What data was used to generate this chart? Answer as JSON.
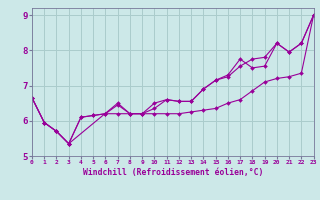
{
  "xlabel": "Windchill (Refroidissement éolien,°C)",
  "bg_color": "#cce8e8",
  "line_color": "#990099",
  "grid_color": "#aacccc",
  "series1": [
    [
      0,
      6.65
    ],
    [
      1,
      5.95
    ],
    [
      2,
      5.7
    ],
    [
      3,
      5.35
    ],
    [
      4,
      6.1
    ],
    [
      5,
      6.15
    ],
    [
      6,
      6.2
    ],
    [
      7,
      6.2
    ],
    [
      8,
      6.2
    ],
    [
      9,
      6.2
    ],
    [
      10,
      6.2
    ],
    [
      11,
      6.2
    ],
    [
      12,
      6.2
    ],
    [
      13,
      6.25
    ],
    [
      14,
      6.3
    ],
    [
      15,
      6.35
    ],
    [
      16,
      6.5
    ],
    [
      17,
      6.6
    ],
    [
      18,
      6.85
    ],
    [
      19,
      7.1
    ],
    [
      20,
      7.2
    ],
    [
      21,
      7.25
    ],
    [
      22,
      7.35
    ],
    [
      23,
      9.0
    ]
  ],
  "series2": [
    [
      0,
      6.65
    ],
    [
      1,
      5.95
    ],
    [
      2,
      5.7
    ],
    [
      3,
      5.35
    ],
    [
      4,
      6.1
    ],
    [
      5,
      6.15
    ],
    [
      6,
      6.2
    ],
    [
      7,
      6.45
    ],
    [
      8,
      6.2
    ],
    [
      9,
      6.2
    ],
    [
      10,
      6.5
    ],
    [
      11,
      6.6
    ],
    [
      12,
      6.55
    ],
    [
      13,
      6.55
    ],
    [
      14,
      6.9
    ],
    [
      15,
      7.15
    ],
    [
      16,
      7.25
    ],
    [
      17,
      7.55
    ],
    [
      18,
      7.75
    ],
    [
      19,
      7.8
    ],
    [
      20,
      8.2
    ],
    [
      21,
      7.95
    ],
    [
      22,
      8.2
    ],
    [
      23,
      9.0
    ]
  ],
  "series3": [
    [
      0,
      6.65
    ],
    [
      1,
      5.95
    ],
    [
      2,
      5.7
    ],
    [
      3,
      5.35
    ],
    [
      7,
      6.5
    ],
    [
      8,
      6.2
    ],
    [
      9,
      6.2
    ],
    [
      10,
      6.35
    ],
    [
      11,
      6.6
    ],
    [
      12,
      6.55
    ],
    [
      13,
      6.55
    ],
    [
      14,
      6.9
    ],
    [
      15,
      7.15
    ],
    [
      16,
      7.3
    ],
    [
      17,
      7.75
    ],
    [
      18,
      7.5
    ],
    [
      19,
      7.55
    ],
    [
      20,
      8.2
    ],
    [
      21,
      7.95
    ],
    [
      22,
      8.2
    ],
    [
      23,
      9.0
    ]
  ],
  "xlim": [
    0,
    23
  ],
  "ylim": [
    5.0,
    9.2
  ],
  "yticks": [
    5,
    6,
    7,
    8,
    9
  ],
  "xticks": [
    0,
    1,
    2,
    3,
    4,
    5,
    6,
    7,
    8,
    9,
    10,
    11,
    12,
    13,
    14,
    15,
    16,
    17,
    18,
    19,
    20,
    21,
    22,
    23
  ]
}
